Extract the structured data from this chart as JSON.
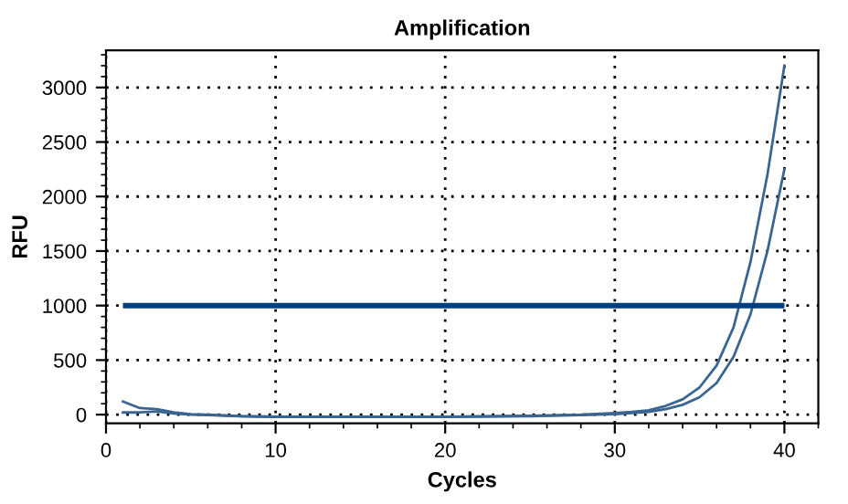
{
  "chart_data": {
    "type": "line",
    "title": "Amplification",
    "xlabel": "Cycles",
    "ylabel": "RFU",
    "x": [
      1,
      2,
      3,
      4,
      5,
      6,
      8,
      10,
      15,
      20,
      25,
      28,
      30,
      31,
      32,
      33,
      34,
      35,
      36,
      37,
      38,
      39,
      40
    ],
    "series": [
      {
        "color": "#3a6591",
        "values": [
          120,
          60,
          50,
          20,
          5,
          0,
          -15,
          -20,
          -20,
          -20,
          -10,
          0,
          15,
          25,
          40,
          80,
          140,
          250,
          450,
          800,
          1400,
          2200,
          3200
        ]
      },
      {
        "color": "#3a6591",
        "values": [
          20,
          20,
          30,
          10,
          0,
          -5,
          -15,
          -20,
          -20,
          -20,
          -15,
          -5,
          5,
          15,
          25,
          50,
          90,
          160,
          290,
          530,
          920,
          1500,
          2250
        ]
      }
    ],
    "ref_lines": [
      {
        "axis": "y",
        "value": 1000,
        "color": "#003f7f"
      }
    ],
    "xlim": [
      0,
      42
    ],
    "ylim": [
      -80,
      3340
    ],
    "xticks": [
      0,
      10,
      20,
      30,
      40
    ],
    "yticks": [
      0,
      500,
      1000,
      1500,
      2000,
      2500,
      3000
    ],
    "grid": true,
    "line_style": "solid",
    "marker": "none"
  }
}
